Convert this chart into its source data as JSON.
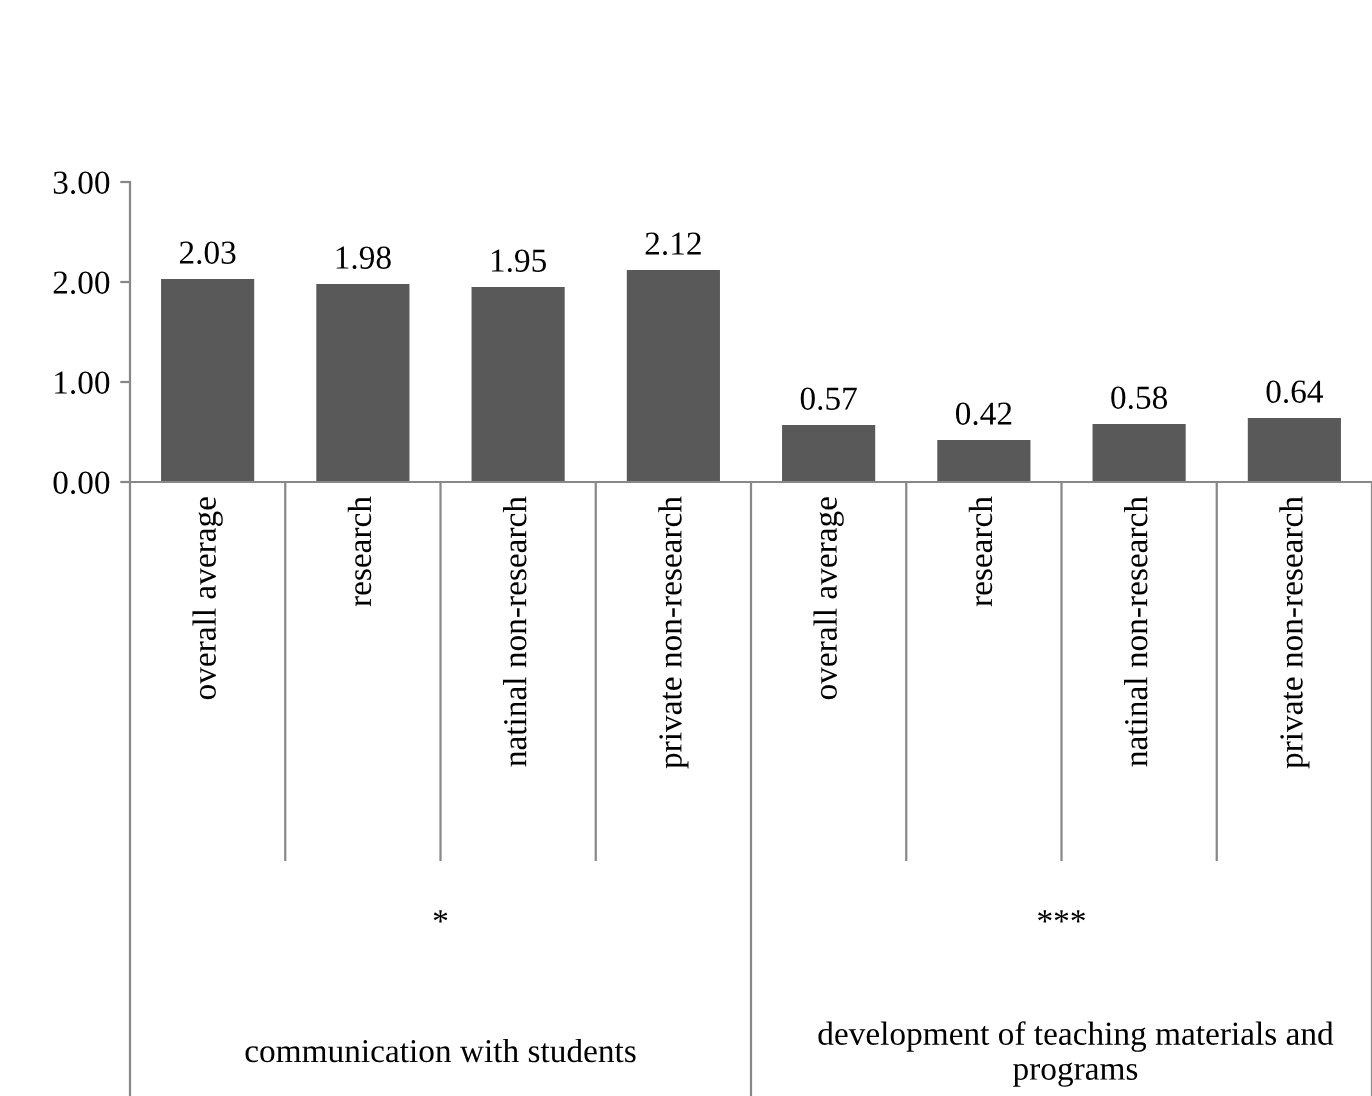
{
  "chart_data": {
    "type": "bar",
    "categories": [
      "overall average",
      "research",
      "natinal non-research",
      "private non-research",
      "overall average",
      "research",
      "natinal non-research",
      "private non-research"
    ],
    "values": [
      2.03,
      1.98,
      1.95,
      2.12,
      0.57,
      0.42,
      0.58,
      0.64
    ],
    "color": "#595959",
    "ylim": [
      0,
      3
    ],
    "yticks": [
      {
        "value": 0,
        "label": "0.00"
      },
      {
        "value": 1,
        "label": "1.00"
      },
      {
        "value": 2,
        "label": "2.00"
      },
      {
        "value": 3,
        "label": "3.00"
      }
    ],
    "data_labels": true,
    "grid": false,
    "annotations": [
      "*",
      "communication with students",
      "***",
      "development of teaching materials and programs"
    ]
  }
}
